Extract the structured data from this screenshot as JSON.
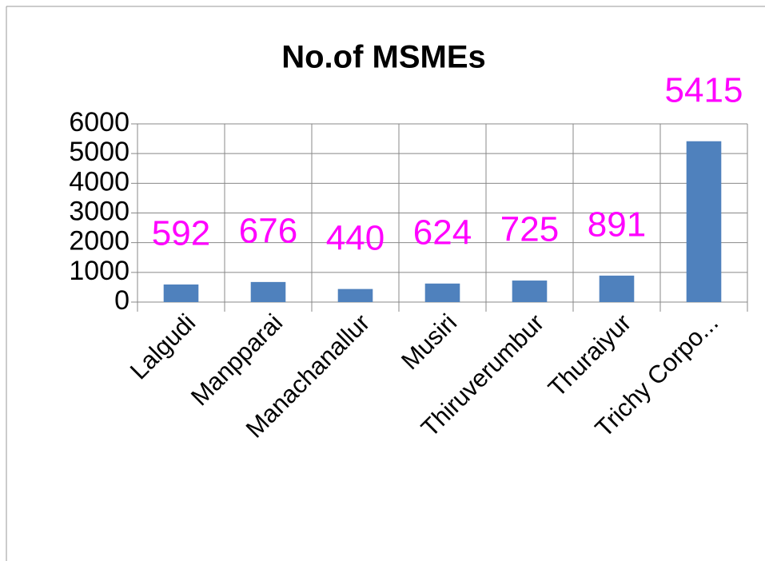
{
  "chart_data": {
    "type": "bar",
    "title": "No.of MSMEs",
    "categories": [
      "Lalgudi",
      "Manpparai",
      "Manachanallur",
      "Musiri",
      "Thiruverumbur",
      "Thuraiyur",
      "Trichy Corpo..."
    ],
    "values": [
      592,
      676,
      440,
      624,
      725,
      891,
      5415
    ],
    "color": "#4f81bd",
    "label_color": "#ff00ff",
    "ylim": [
      0,
      6000
    ],
    "yticks": [
      0,
      1000,
      2000,
      3000,
      4000,
      5000,
      6000
    ],
    "grid": true
  }
}
